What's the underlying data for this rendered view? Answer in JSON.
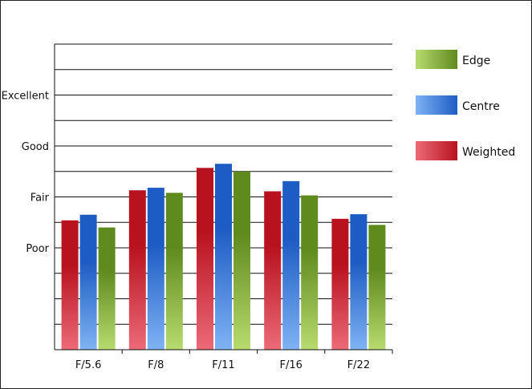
{
  "chart_data": {
    "type": "bar",
    "categories": [
      "F/5.6",
      "F/8",
      "F/11",
      "F/16",
      "F/22"
    ],
    "y_tick_labels": [
      {
        "label": "Poor",
        "value": 1
      },
      {
        "label": "Fair",
        "value": 2
      },
      {
        "label": "Good",
        "value": 3
      },
      {
        "label": "Excellent",
        "value": 4
      }
    ],
    "ylim": [
      -1,
      5
    ],
    "grid": true,
    "legend_position": "right",
    "series": [
      {
        "name": "Weighted",
        "values": [
          1.54,
          2.13,
          2.57,
          2.11,
          1.57
        ],
        "color_dark": "#b8121e",
        "color_light": "#ec6a78"
      },
      {
        "name": "Centre",
        "values": [
          1.65,
          2.18,
          2.65,
          2.31,
          1.66
        ],
        "color_dark": "#1d5cc4",
        "color_light": "#7fb3f4"
      },
      {
        "name": "Edge",
        "values": [
          1.4,
          2.08,
          2.5,
          2.03,
          1.45
        ],
        "color_dark": "#5f8a1e",
        "color_light": "#b8db6e"
      }
    ],
    "legend_order": [
      "Edge",
      "Centre",
      "Weighted"
    ]
  }
}
